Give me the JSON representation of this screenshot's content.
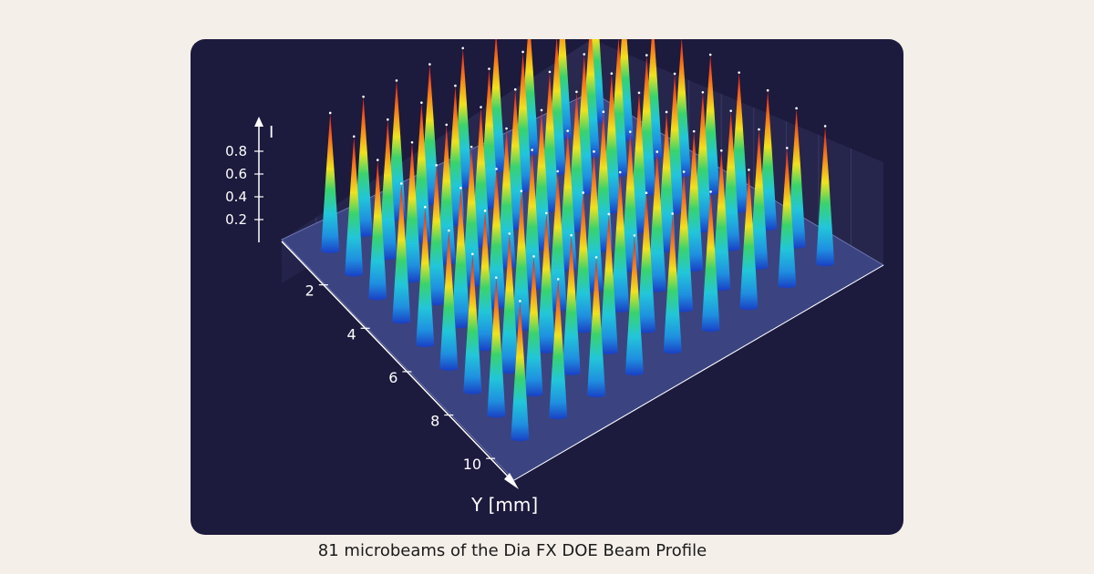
{
  "caption": "81 microbeams of the Dia FX DOE Beam Profile",
  "chart_data": {
    "type": "surface3d",
    "title": "",
    "z_axis": {
      "label": "I",
      "ticks": [
        "0.2",
        "0.4",
        "0.6",
        "0.8"
      ]
    },
    "y_axis": {
      "label": "Y [mm]",
      "ticks": [
        "2",
        "4",
        "6",
        "8",
        "10"
      ]
    },
    "x_axis": {
      "label": "",
      "ticks": []
    },
    "grid_size": [
      9,
      9
    ],
    "beam_count": 81,
    "peak_intensity_approx": 0.9,
    "colormap": [
      "#1a4fd6",
      "#19b4e6",
      "#2fd37c",
      "#f0e21e",
      "#f78b1c",
      "#e51f1f"
    ],
    "colors": {
      "panel_background": "#1c1a3d",
      "floor": "#3b4480",
      "page_background": "#f5efe9"
    }
  }
}
